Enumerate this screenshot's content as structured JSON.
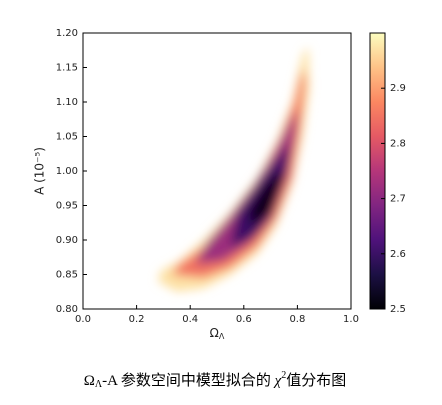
{
  "chart_data": {
    "type": "contour",
    "xlabel": "Ω",
    "xlabel_sub": "Λ",
    "ylabel": "A (10⁻⁵)",
    "xlim": [
      0,
      1
    ],
    "xticks": [
      {
        "value": 0,
        "label": "0.0"
      },
      0.2,
      0.4,
      0.6,
      0.8,
      {
        "value": 1,
        "label": "1.0"
      }
    ],
    "ylim": [
      0.8,
      1.2
    ],
    "yticks": [
      {
        "value": 0.8,
        "label": "0.80"
      },
      0.85,
      {
        "value": 0.9,
        "label": "0.90"
      },
      0.95,
      {
        "value": 1,
        "label": "1.00"
      },
      1.05,
      {
        "value": 1.1,
        "label": "1.10"
      },
      1.15,
      {
        "value": 1.2,
        "label": "1.20"
      }
    ],
    "colormap": "magma",
    "clim": [
      2.5,
      3.0
    ],
    "cticks": [
      2.5,
      2.6,
      2.7,
      2.8,
      2.9
    ],
    "contours": [
      {
        "level": 2.97,
        "x": [
          0.28,
          0.35,
          0.45,
          0.55,
          0.65,
          0.72,
          0.78,
          0.82,
          0.845,
          0.84,
          0.82,
          0.78,
          0.72,
          0.65,
          0.55,
          0.45,
          0.36,
          0.29
        ],
        "y": [
          0.84,
          0.825,
          0.83,
          0.85,
          0.88,
          0.92,
          0.98,
          1.05,
          1.12,
          1.18,
          1.17,
          1.1,
          1.04,
          0.99,
          0.94,
          0.9,
          0.87,
          0.855
        ]
      },
      {
        "level": 2.85,
        "x": [
          0.33,
          0.45,
          0.55,
          0.65,
          0.72,
          0.78,
          0.81,
          0.83,
          0.82,
          0.79,
          0.74,
          0.66,
          0.56,
          0.45,
          0.36
        ],
        "y": [
          0.85,
          0.845,
          0.86,
          0.89,
          0.93,
          0.99,
          1.06,
          1.13,
          1.15,
          1.1,
          1.05,
          0.99,
          0.935,
          0.89,
          0.865
        ]
      },
      {
        "level": 2.72,
        "x": [
          0.42,
          0.52,
          0.62,
          0.7,
          0.76,
          0.79,
          0.8,
          0.77,
          0.72,
          0.64,
          0.55,
          0.46
        ],
        "y": [
          0.865,
          0.87,
          0.895,
          0.93,
          0.99,
          1.05,
          1.09,
          1.07,
          1.03,
          0.98,
          0.935,
          0.895
        ]
      },
      {
        "level": 2.6,
        "x": [
          0.55,
          0.64,
          0.71,
          0.76,
          0.77,
          0.73,
          0.66,
          0.58
        ],
        "y": [
          0.89,
          0.905,
          0.94,
          1.0,
          1.04,
          1.02,
          0.985,
          0.94
        ]
      },
      {
        "level": 2.52,
        "x": [
          0.63,
          0.7,
          0.745,
          0.73,
          0.67,
          0.62
        ],
        "y": [
          0.92,
          0.94,
          0.99,
          1.0,
          0.975,
          0.94
        ]
      }
    ]
  },
  "caption": {
    "omega": "Ω",
    "sub": "Λ",
    "text1": "-A 参数空间中模型拟合的 ",
    "chi": "χ",
    "sup": "2",
    "text2": "值分布图"
  }
}
